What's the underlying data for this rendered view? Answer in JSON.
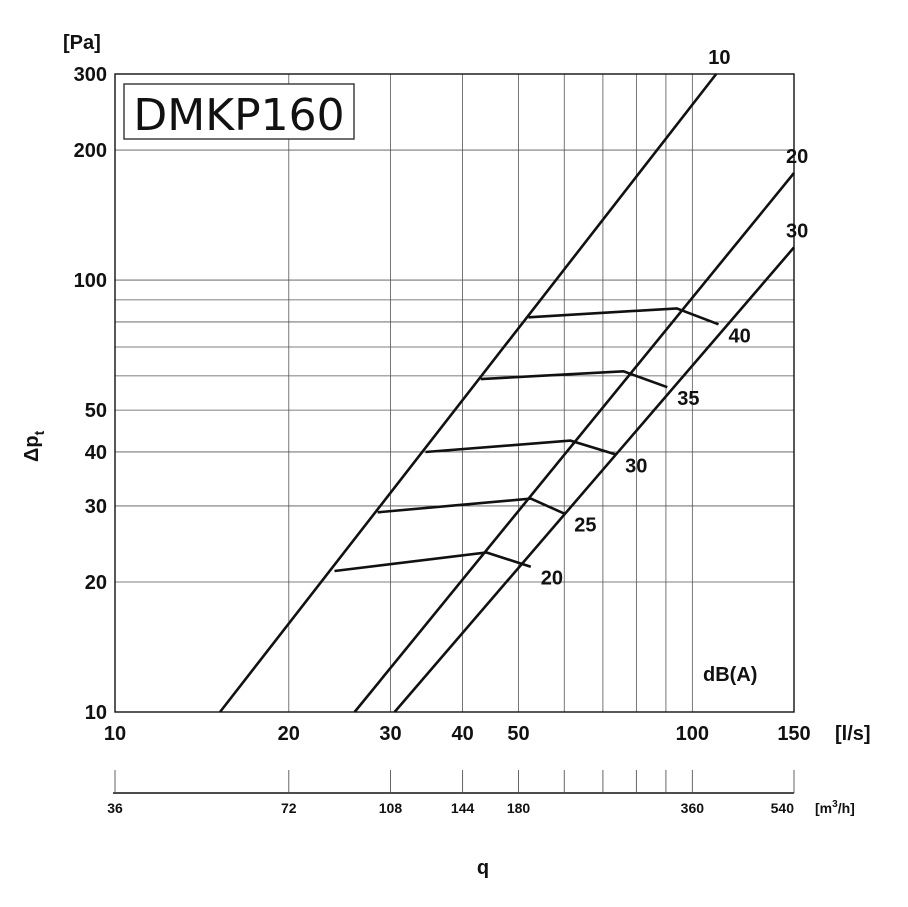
{
  "chart_data": {
    "type": "line",
    "title": "DMKP160",
    "xlabel": "q",
    "ylabel": "Δpt",
    "ylabel_main": "Δp",
    "ylabel_sub": "t",
    "x_unit": "[l/s]",
    "y_unit": "[Pa]",
    "noise_unit": "dB(A)",
    "x_scale": "log",
    "y_scale": "log",
    "xlim": [
      10,
      150
    ],
    "ylim": [
      10,
      300
    ],
    "x_ticks": [
      10,
      20,
      30,
      40,
      50,
      100,
      150
    ],
    "x_tick_labels": [
      "10",
      "20",
      "30",
      "40",
      "50",
      "100",
      "150"
    ],
    "y_ticks": [
      10,
      20,
      30,
      40,
      50,
      100,
      200,
      300
    ],
    "y_tick_labels": [
      "10",
      "20",
      "30",
      "40",
      "50",
      "100",
      "200",
      "300"
    ],
    "x_grid": [
      20,
      30,
      40,
      50,
      60,
      70,
      80,
      90,
      100
    ],
    "y_grid": [
      20,
      30,
      40,
      50,
      60,
      70,
      80,
      90,
      100,
      200
    ],
    "secondary_axis": {
      "unit": "[m³/h]",
      "unit_main": "[m",
      "unit_sup": "3",
      "unit_tail": "/h]",
      "ticks_ls": [
        10,
        20,
        30,
        40,
        50,
        60,
        70,
        80,
        90,
        100,
        150
      ],
      "labels": [
        {
          "ls": 10,
          "text": "36"
        },
        {
          "ls": 20,
          "text": "72"
        },
        {
          "ls": 30,
          "text": "108"
        },
        {
          "ls": 40,
          "text": "144"
        },
        {
          "ls": 50,
          "text": "180"
        },
        {
          "ls": 100,
          "text": "360"
        },
        {
          "ls": 150,
          "text": "540"
        }
      ]
    },
    "series": [
      {
        "name": "10",
        "points": [
          [
            15.2,
            10
          ],
          [
            110,
            300
          ]
        ]
      },
      {
        "name": "20",
        "points": [
          [
            26.0,
            10
          ],
          [
            150,
            177
          ]
        ]
      },
      {
        "name": "30",
        "points": [
          [
            30.5,
            10
          ],
          [
            150,
            119
          ]
        ]
      }
    ],
    "noise_levels": [
      {
        "label": "20",
        "points": [
          [
            24,
            21.2
          ],
          [
            44,
            23.4
          ],
          [
            52.5,
            21.7
          ]
        ]
      },
      {
        "label": "25",
        "points": [
          [
            28.5,
            29.0
          ],
          [
            52.5,
            31.2
          ],
          [
            60,
            28.8
          ]
        ]
      },
      {
        "label": "30",
        "points": [
          [
            34.5,
            40.0
          ],
          [
            61.5,
            42.5
          ],
          [
            73.5,
            39.5
          ]
        ]
      },
      {
        "label": "35",
        "points": [
          [
            43,
            59.0
          ],
          [
            76,
            61.5
          ],
          [
            90.5,
            56.5
          ]
        ]
      },
      {
        "label": "40",
        "points": [
          [
            52,
            82.0
          ],
          [
            94,
            86.0
          ],
          [
            111,
            79.0
          ]
        ]
      }
    ]
  }
}
